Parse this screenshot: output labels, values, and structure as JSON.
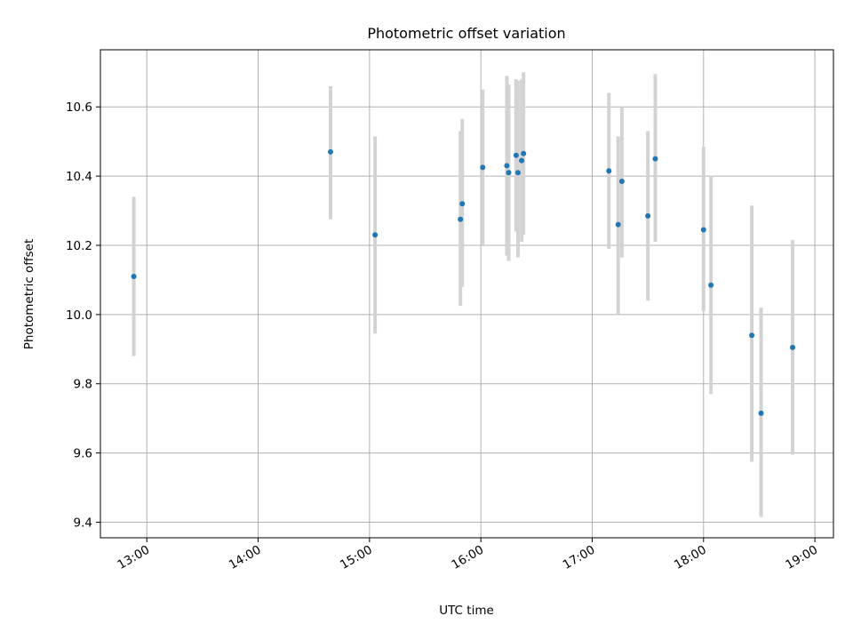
{
  "chart_data": {
    "type": "scatter",
    "title": "Photometric offset variation",
    "xlabel": "UTC time",
    "ylabel": "Photometric offset",
    "x_ticks": [
      "13:00",
      "14:00",
      "15:00",
      "16:00",
      "17:00",
      "18:00",
      "19:00"
    ],
    "x_tick_values": [
      "13:00",
      "14:00",
      "15:00",
      "16:00",
      "17:00",
      "18:00",
      "19:00"
    ],
    "xlim": [
      "12:35",
      "19:10"
    ],
    "y_ticks": [
      "9.4",
      "9.6",
      "9.8",
      "10.0",
      "10.2",
      "10.4",
      "10.6"
    ],
    "y_tick_values": [
      9.4,
      9.6,
      9.8,
      10.0,
      10.2,
      10.4,
      10.6
    ],
    "ylim": [
      9.355,
      10.765
    ],
    "grid": true,
    "colors": {
      "point": "#1f77b4",
      "errorbar": "#d3d3d3",
      "grid": "#b0b0b0"
    },
    "points": [
      {
        "time": "12:53",
        "y": 10.11,
        "ylo": 9.88,
        "yhi": 10.34
      },
      {
        "time": "14:39",
        "y": 10.47,
        "ylo": 10.275,
        "yhi": 10.66
      },
      {
        "time": "15:03",
        "y": 10.23,
        "ylo": 9.945,
        "yhi": 10.515
      },
      {
        "time": "15:49",
        "y": 10.275,
        "ylo": 10.025,
        "yhi": 10.53
      },
      {
        "time": "15:50",
        "y": 10.32,
        "ylo": 10.08,
        "yhi": 10.565
      },
      {
        "time": "16:01",
        "y": 10.425,
        "ylo": 10.2,
        "yhi": 10.65
      },
      {
        "time": "16:14",
        "y": 10.43,
        "ylo": 10.17,
        "yhi": 10.69
      },
      {
        "time": "16:15",
        "y": 10.41,
        "ylo": 10.155,
        "yhi": 10.665
      },
      {
        "time": "16:19",
        "y": 10.46,
        "ylo": 10.24,
        "yhi": 10.68
      },
      {
        "time": "16:20",
        "y": 10.41,
        "ylo": 10.165,
        "yhi": 10.675
      },
      {
        "time": "16:22",
        "y": 10.445,
        "ylo": 10.21,
        "yhi": 10.68
      },
      {
        "time": "16:23",
        "y": 10.465,
        "ylo": 10.23,
        "yhi": 10.7
      },
      {
        "time": "17:09",
        "y": 10.415,
        "ylo": 10.19,
        "yhi": 10.64
      },
      {
        "time": "17:14",
        "y": 10.26,
        "ylo": 10.0,
        "yhi": 10.515
      },
      {
        "time": "17:16",
        "y": 10.385,
        "ylo": 10.165,
        "yhi": 10.6
      },
      {
        "time": "17:30",
        "y": 10.285,
        "ylo": 10.04,
        "yhi": 10.53
      },
      {
        "time": "17:34",
        "y": 10.45,
        "ylo": 10.21,
        "yhi": 10.695
      },
      {
        "time": "18:00",
        "y": 10.245,
        "ylo": 10.01,
        "yhi": 10.485
      },
      {
        "time": "18:04",
        "y": 10.085,
        "ylo": 9.77,
        "yhi": 10.4
      },
      {
        "time": "18:26",
        "y": 9.94,
        "ylo": 9.575,
        "yhi": 10.315
      },
      {
        "time": "18:31",
        "y": 9.715,
        "ylo": 9.415,
        "yhi": 10.02
      },
      {
        "time": "18:48",
        "y": 9.905,
        "ylo": 9.595,
        "yhi": 10.215
      }
    ]
  }
}
